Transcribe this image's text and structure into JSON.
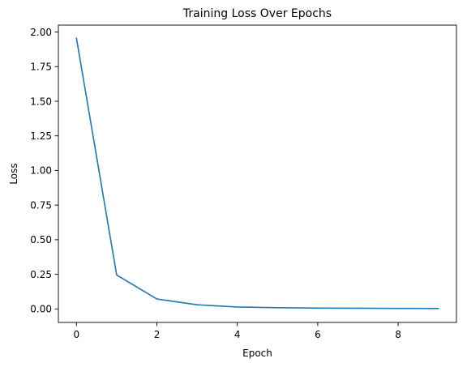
{
  "chart_data": {
    "type": "line",
    "title": "Training Loss Over Epochs",
    "xlabel": "Epoch",
    "ylabel": "Loss",
    "xlim": [
      -0.45,
      9.45
    ],
    "ylim": [
      -0.0975,
      2.05
    ],
    "xticks": [
      0,
      2,
      4,
      6,
      8
    ],
    "xtick_labels": [
      "0",
      "2",
      "4",
      "6",
      "8"
    ],
    "yticks": [
      0.0,
      0.25,
      0.5,
      0.75,
      1.0,
      1.25,
      1.5,
      1.75,
      2.0
    ],
    "ytick_labels": [
      "0.00",
      "0.25",
      "0.50",
      "0.75",
      "1.00",
      "1.25",
      "1.50",
      "1.75",
      "2.00"
    ],
    "grid": false,
    "series": [
      {
        "color": "#1f77b4",
        "x": [
          0,
          1,
          2,
          3,
          4,
          5,
          6,
          7,
          8,
          9
        ],
        "y": [
          1.955,
          0.245,
          0.072,
          0.03,
          0.014,
          0.009,
          0.006,
          0.005,
          0.004,
          0.003
        ]
      }
    ]
  }
}
